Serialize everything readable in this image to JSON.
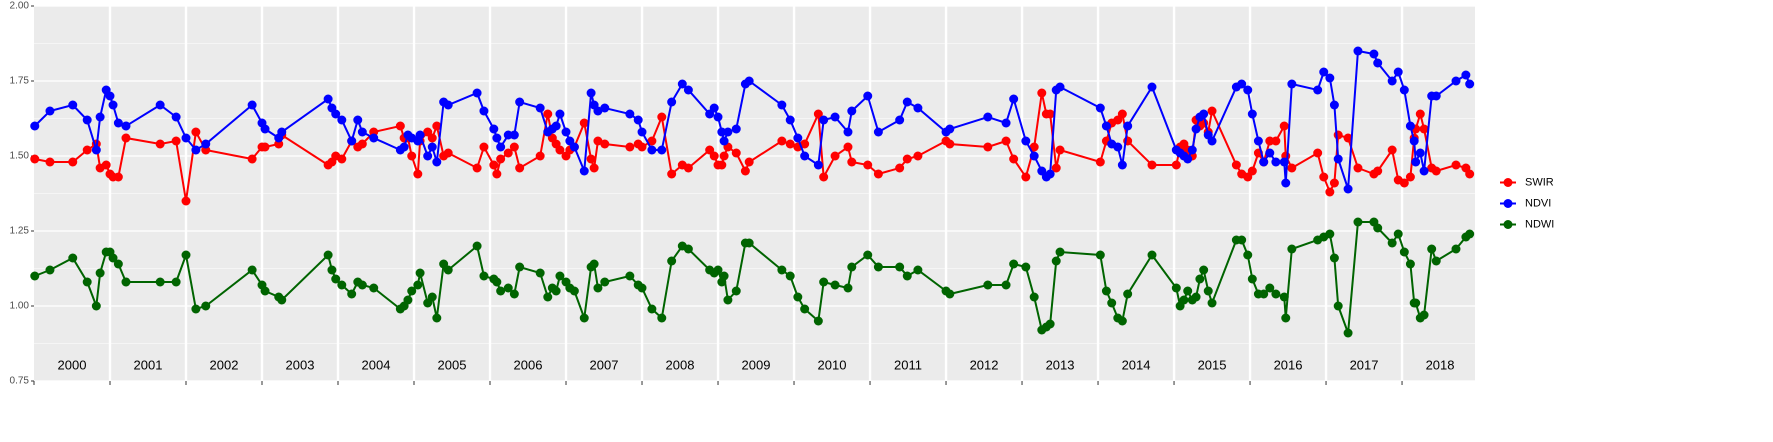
{
  "chart_data": {
    "type": "line",
    "x": [
      2000.01,
      2000.21,
      2000.51,
      2000.7,
      2000.82,
      2000.87,
      2000.95,
      2001,
      2001.04,
      2001.11,
      2001.21,
      2001.66,
      2001.87,
      2002,
      2002.13,
      2002.26,
      2002.87,
      2003,
      2003.04,
      2003.22,
      2003.26,
      2003.87,
      2003.92,
      2003.97,
      2004.05,
      2004.18,
      2004.26,
      2004.32,
      2004.47,
      2004.82,
      2004.87,
      2004.92,
      2004.97,
      2005.05,
      2005.08,
      2005.18,
      2005.24,
      2005.3,
      2005.39,
      2005.45,
      2005.83,
      2005.92,
      2006.05,
      2006.09,
      2006.14,
      2006.24,
      2006.32,
      2006.39,
      2006.66,
      2006.76,
      2006.82,
      2006.87,
      2006.92,
      2007,
      2007.05,
      2007.11,
      2007.24,
      2007.33,
      2007.37,
      2007.42,
      2007.51,
      2007.84,
      2007.95,
      2008,
      2008.13,
      2008.26,
      2008.39,
      2008.53,
      2008.61,
      2008.89,
      2008.95,
      2009,
      2009.05,
      2009.08,
      2009.13,
      2009.24,
      2009.36,
      2009.41,
      2009.84,
      2009.95,
      2010.05,
      2010.14,
      2010.32,
      2010.39,
      2010.54,
      2010.71,
      2010.76,
      2010.97,
      2011.11,
      2011.39,
      2011.49,
      2011.63,
      2012,
      2012.05,
      2012.55,
      2012.79,
      2012.89,
      2013.05,
      2013.16,
      2013.26,
      2013.32,
      2013.37,
      2013.45,
      2013.5,
      2014.03,
      2014.11,
      2014.18,
      2014.26,
      2014.32,
      2014.39,
      2014.71,
      2015.03,
      2015.08,
      2015.13,
      2015.18,
      2015.24,
      2015.29,
      2015.34,
      2015.39,
      2015.45,
      2015.5,
      2015.82,
      2015.89,
      2015.97,
      2016.03,
      2016.11,
      2016.18,
      2016.26,
      2016.34,
      2016.45,
      2016.47,
      2016.55,
      2016.89,
      2016.97,
      2017.05,
      2017.11,
      2017.16,
      2017.29,
      2017.42,
      2017.63,
      2017.68,
      2017.87,
      2017.95,
      2018.03,
      2018.11,
      2018.16,
      2018.18,
      2018.24,
      2018.29,
      2018.39,
      2018.45,
      2018.71,
      2018.84,
      2018.89
    ],
    "series": [
      {
        "name": "SWIR",
        "color": "#ff0000",
        "values": [
          1.49,
          1.48,
          1.48,
          1.52,
          1.54,
          1.46,
          1.47,
          1.44,
          1.43,
          1.43,
          1.56,
          1.54,
          1.55,
          1.35,
          1.58,
          1.52,
          1.49,
          1.53,
          1.53,
          1.54,
          1.57,
          1.47,
          1.48,
          1.5,
          1.49,
          1.55,
          1.53,
          1.54,
          1.58,
          1.6,
          1.56,
          1.56,
          1.5,
          1.44,
          1.55,
          1.58,
          1.56,
          1.6,
          1.5,
          1.51,
          1.46,
          1.53,
          1.47,
          1.44,
          1.49,
          1.51,
          1.53,
          1.46,
          1.5,
          1.64,
          1.56,
          1.54,
          1.52,
          1.5,
          1.52,
          1.53,
          1.61,
          1.49,
          1.46,
          1.55,
          1.54,
          1.53,
          1.54,
          1.53,
          1.55,
          1.63,
          1.44,
          1.47,
          1.46,
          1.52,
          1.5,
          1.47,
          1.47,
          1.5,
          1.53,
          1.51,
          1.45,
          1.48,
          1.55,
          1.54,
          1.53,
          1.54,
          1.64,
          1.43,
          1.5,
          1.53,
          1.48,
          1.47,
          1.44,
          1.46,
          1.49,
          1.5,
          1.55,
          1.54,
          1.53,
          1.55,
          1.49,
          1.43,
          1.53,
          1.71,
          1.64,
          1.64,
          1.46,
          1.52,
          1.48,
          1.55,
          1.61,
          1.62,
          1.64,
          1.55,
          1.47,
          1.47,
          1.53,
          1.54,
          1.52,
          1.5,
          1.62,
          1.6,
          1.61,
          1.58,
          1.65,
          1.47,
          1.44,
          1.43,
          1.45,
          1.51,
          1.48,
          1.55,
          1.55,
          1.6,
          1.5,
          1.46,
          1.51,
          1.43,
          1.38,
          1.41,
          1.57,
          1.56,
          1.46,
          1.44,
          1.45,
          1.52,
          1.42,
          1.41,
          1.43,
          1.56,
          1.59,
          1.64,
          1.59,
          1.46,
          1.45,
          1.47,
          1.46,
          1.44
        ]
      },
      {
        "name": "NDVI",
        "color": "#0000ff",
        "values": [
          1.6,
          1.65,
          1.67,
          1.62,
          1.52,
          1.63,
          1.72,
          1.7,
          1.67,
          1.61,
          1.6,
          1.67,
          1.63,
          1.56,
          1.52,
          1.54,
          1.67,
          1.61,
          1.59,
          1.56,
          1.58,
          1.69,
          1.66,
          1.64,
          1.62,
          1.55,
          1.62,
          1.58,
          1.56,
          1.52,
          1.53,
          1.57,
          1.56,
          1.55,
          1.57,
          1.5,
          1.53,
          1.48,
          1.68,
          1.67,
          1.71,
          1.65,
          1.59,
          1.56,
          1.53,
          1.57,
          1.57,
          1.68,
          1.66,
          1.58,
          1.59,
          1.6,
          1.64,
          1.58,
          1.55,
          1.53,
          1.45,
          1.71,
          1.67,
          1.65,
          1.66,
          1.64,
          1.62,
          1.58,
          1.52,
          1.52,
          1.68,
          1.74,
          1.72,
          1.64,
          1.66,
          1.63,
          1.58,
          1.55,
          1.58,
          1.59,
          1.74,
          1.75,
          1.67,
          1.62,
          1.56,
          1.5,
          1.47,
          1.62,
          1.63,
          1.58,
          1.65,
          1.7,
          1.58,
          1.62,
          1.68,
          1.66,
          1.58,
          1.59,
          1.63,
          1.61,
          1.69,
          1.55,
          1.5,
          1.45,
          1.43,
          1.44,
          1.72,
          1.73,
          1.66,
          1.6,
          1.54,
          1.53,
          1.47,
          1.6,
          1.73,
          1.52,
          1.51,
          1.5,
          1.49,
          1.52,
          1.59,
          1.63,
          1.64,
          1.57,
          1.55,
          1.73,
          1.74,
          1.72,
          1.64,
          1.55,
          1.48,
          1.51,
          1.48,
          1.48,
          1.41,
          1.74,
          1.72,
          1.78,
          1.76,
          1.67,
          1.49,
          1.39,
          1.85,
          1.84,
          1.81,
          1.75,
          1.78,
          1.72,
          1.6,
          1.55,
          1.48,
          1.51,
          1.45,
          1.7,
          1.7,
          1.75,
          1.77,
          1.74
        ]
      },
      {
        "name": "NDWI",
        "color": "#006400",
        "values": [
          1.1,
          1.12,
          1.16,
          1.08,
          1.0,
          1.11,
          1.18,
          1.18,
          1.16,
          1.14,
          1.08,
          1.08,
          1.08,
          1.17,
          0.99,
          1.0,
          1.12,
          1.07,
          1.05,
          1.03,
          1.02,
          1.17,
          1.12,
          1.09,
          1.07,
          1.04,
          1.08,
          1.07,
          1.06,
          0.99,
          1.0,
          1.02,
          1.05,
          1.07,
          1.11,
          1.01,
          1.03,
          0.96,
          1.14,
          1.12,
          1.2,
          1.1,
          1.09,
          1.08,
          1.05,
          1.06,
          1.04,
          1.13,
          1.11,
          1.03,
          1.06,
          1.05,
          1.1,
          1.08,
          1.06,
          1.05,
          0.96,
          1.13,
          1.14,
          1.06,
          1.08,
          1.1,
          1.07,
          1.06,
          0.99,
          0.96,
          1.15,
          1.2,
          1.19,
          1.12,
          1.11,
          1.12,
          1.08,
          1.1,
          1.02,
          1.05,
          1.21,
          1.21,
          1.12,
          1.1,
          1.03,
          0.99,
          0.95,
          1.08,
          1.07,
          1.06,
          1.13,
          1.17,
          1.13,
          1.13,
          1.1,
          1.12,
          1.05,
          1.04,
          1.07,
          1.07,
          1.14,
          1.13,
          1.03,
          0.92,
          0.93,
          0.94,
          1.15,
          1.18,
          1.17,
          1.05,
          1.01,
          0.96,
          0.95,
          1.04,
          1.17,
          1.06,
          1.0,
          1.02,
          1.05,
          1.02,
          1.03,
          1.09,
          1.12,
          1.05,
          1.01,
          1.22,
          1.22,
          1.17,
          1.09,
          1.04,
          1.04,
          1.06,
          1.04,
          1.03,
          0.96,
          1.19,
          1.22,
          1.23,
          1.24,
          1.16,
          1.0,
          0.91,
          1.28,
          1.28,
          1.26,
          1.21,
          1.24,
          1.18,
          1.14,
          1.01,
          1.01,
          0.96,
          0.97,
          1.19,
          1.15,
          1.19,
          1.23,
          1.24
        ]
      }
    ],
    "xlim": [
      2000,
      2018.96
    ],
    "xticks": [
      2000,
      2001,
      2002,
      2003,
      2004,
      2005,
      2006,
      2007,
      2008,
      2009,
      2010,
      2011,
      2012,
      2013,
      2014,
      2015,
      2016,
      2017,
      2018
    ],
    "ylim": [
      0.75,
      2
    ],
    "yticks": [
      {
        "value": 0.75,
        "label": "0.75"
      },
      {
        "value": 1,
        "label": "1.00"
      },
      {
        "value": 1.25,
        "label": "1.25"
      },
      {
        "value": 1.5,
        "label": "1.50"
      },
      {
        "value": 1.75,
        "label": "1.75"
      },
      {
        "value": 2,
        "label": "2.00"
      }
    ],
    "grid": true,
    "legend": "right"
  }
}
